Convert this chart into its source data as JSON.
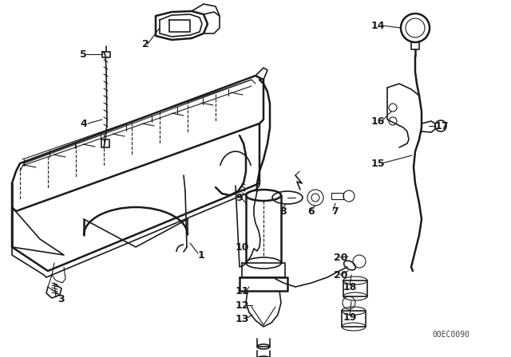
{
  "bg_color": "#ffffff",
  "fg_color": "#1a1a1a",
  "watermark": "00EC0090",
  "fig_width": 6.4,
  "fig_height": 4.48,
  "dpi": 100
}
